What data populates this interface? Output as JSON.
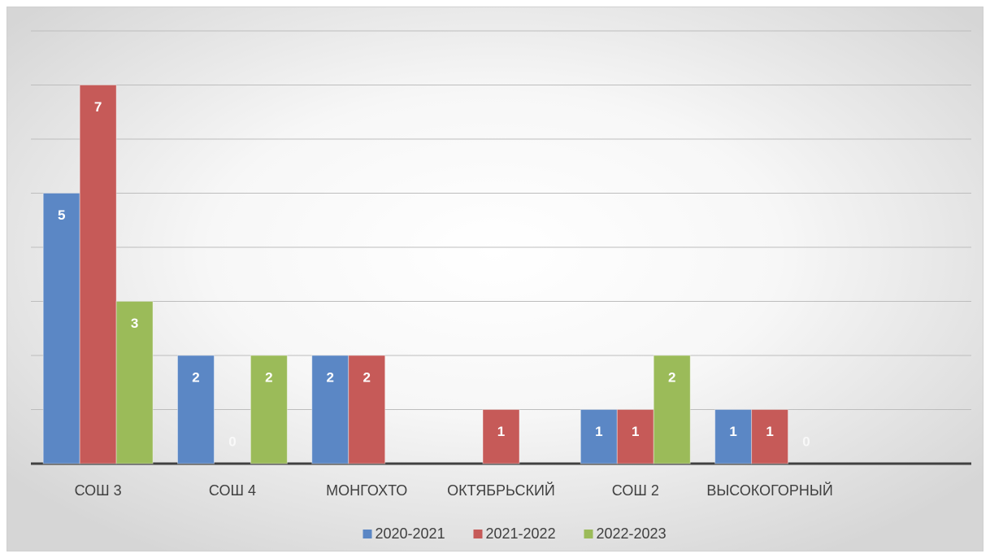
{
  "chart_data": {
    "type": "bar",
    "categories": [
      "СОШ 3",
      "СОШ 4",
      "МОНГОХТО",
      "ОКТЯБРЬСКИЙ",
      "СОШ 2",
      "ВЫСОКОГОРНЫЙ",
      null
    ],
    "series": [
      {
        "name": "2020-2021",
        "color": "#5b87c5",
        "values": [
          5,
          2,
          2,
          null,
          1,
          1,
          null
        ]
      },
      {
        "name": "2021-2022",
        "color": "#c65a58",
        "values": [
          7,
          0,
          2,
          1,
          1,
          1,
          null
        ]
      },
      {
        "name": "2022-2023",
        "color": "#9bbb59",
        "values": [
          3,
          2,
          null,
          null,
          2,
          0,
          null
        ]
      }
    ],
    "ylim": [
      0,
      8
    ],
    "yticks": [
      0,
      1,
      2,
      3,
      4,
      5,
      6,
      7,
      8
    ],
    "grid": true,
    "legend": "bottom"
  }
}
